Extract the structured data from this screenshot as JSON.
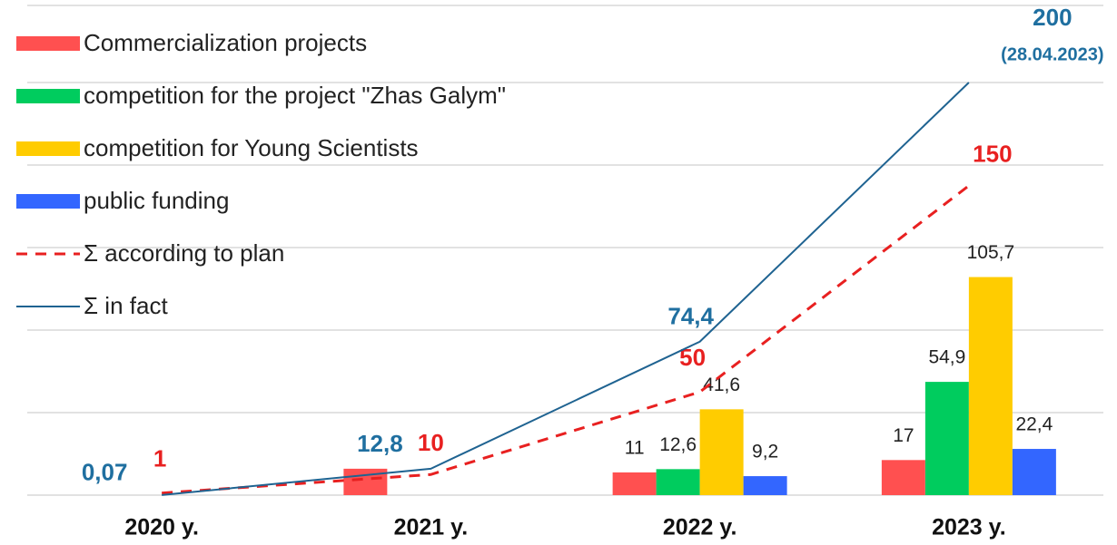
{
  "chart_data": {
    "type": "bar",
    "categories": [
      "2020 y.",
      "2021 y.",
      "2022 y.",
      "2023 y."
    ],
    "ylim": [
      0,
      240
    ],
    "yticks": [
      0,
      40,
      80,
      120,
      160,
      200,
      240
    ],
    "grid": true,
    "legend": "top-left",
    "series": [
      {
        "name": "Commercialization projects",
        "type": "bar",
        "color": "#ff5050",
        "values": [
          null,
          12.8,
          11,
          17
        ],
        "value_labels": [
          null,
          null,
          "11",
          "17"
        ]
      },
      {
        "name": "competition for the project \"Zhas Galym\"",
        "type": "bar",
        "color": "#00cc5e",
        "values": [
          null,
          null,
          12.6,
          54.9
        ],
        "value_labels": [
          null,
          null,
          "12,6",
          "54,9"
        ]
      },
      {
        "name": "competition for Young Scientists",
        "type": "bar",
        "color": "#ffcc00",
        "values": [
          null,
          null,
          41.6,
          105.7
        ],
        "value_labels": [
          null,
          null,
          "41,6",
          "105,7"
        ]
      },
      {
        "name": "public funding",
        "type": "bar",
        "color": "#3366ff",
        "values": [
          null,
          null,
          9.2,
          22.4
        ],
        "value_labels": [
          null,
          null,
          "9,2",
          "22,4"
        ]
      },
      {
        "name": "Σ according to plan",
        "type": "line",
        "dashed": true,
        "color": "#e82020",
        "values": [
          1,
          10,
          50,
          150
        ],
        "value_labels": [
          "1",
          "10",
          "50",
          "150"
        ]
      },
      {
        "name": "Σ in fact",
        "type": "line",
        "dashed": false,
        "color": "#1f6391",
        "label_color": "#1f6fa0",
        "values": [
          0.07,
          12.8,
          74.4,
          200
        ],
        "value_labels": [
          "0,07",
          "12,8",
          "74,4",
          "200"
        ]
      }
    ],
    "annotation": "(28.04.2023)"
  }
}
